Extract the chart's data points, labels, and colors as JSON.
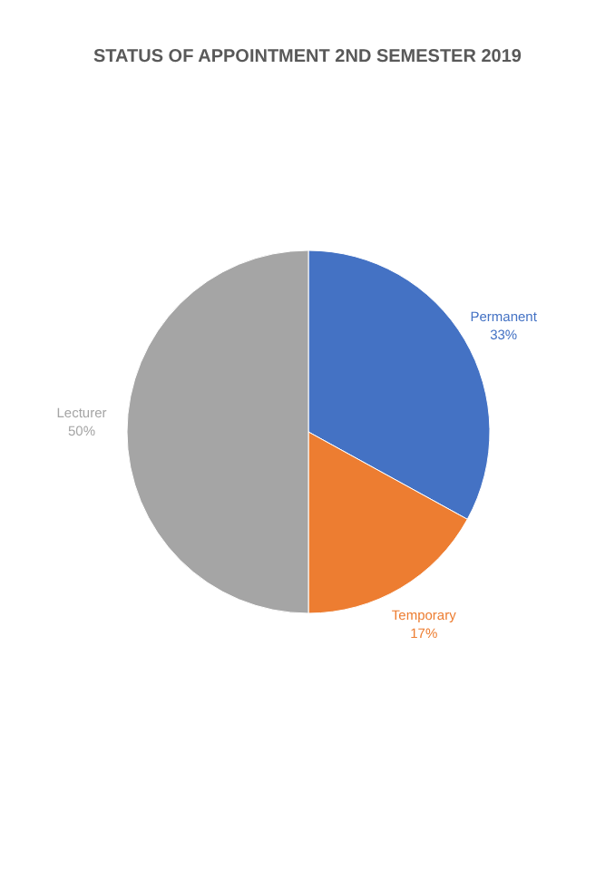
{
  "chart_data": {
    "type": "pie",
    "title": "STATUS OF APPOINTMENT 2ND SEMESTER 2019",
    "categories": [
      "Permanent",
      "Temporary",
      "Lecturer"
    ],
    "values": [
      33,
      17,
      50
    ],
    "colors": [
      "#4472c4",
      "#ed7d31",
      "#a5a5a5"
    ],
    "value_labels": [
      "33%",
      "17%",
      "50%"
    ]
  }
}
